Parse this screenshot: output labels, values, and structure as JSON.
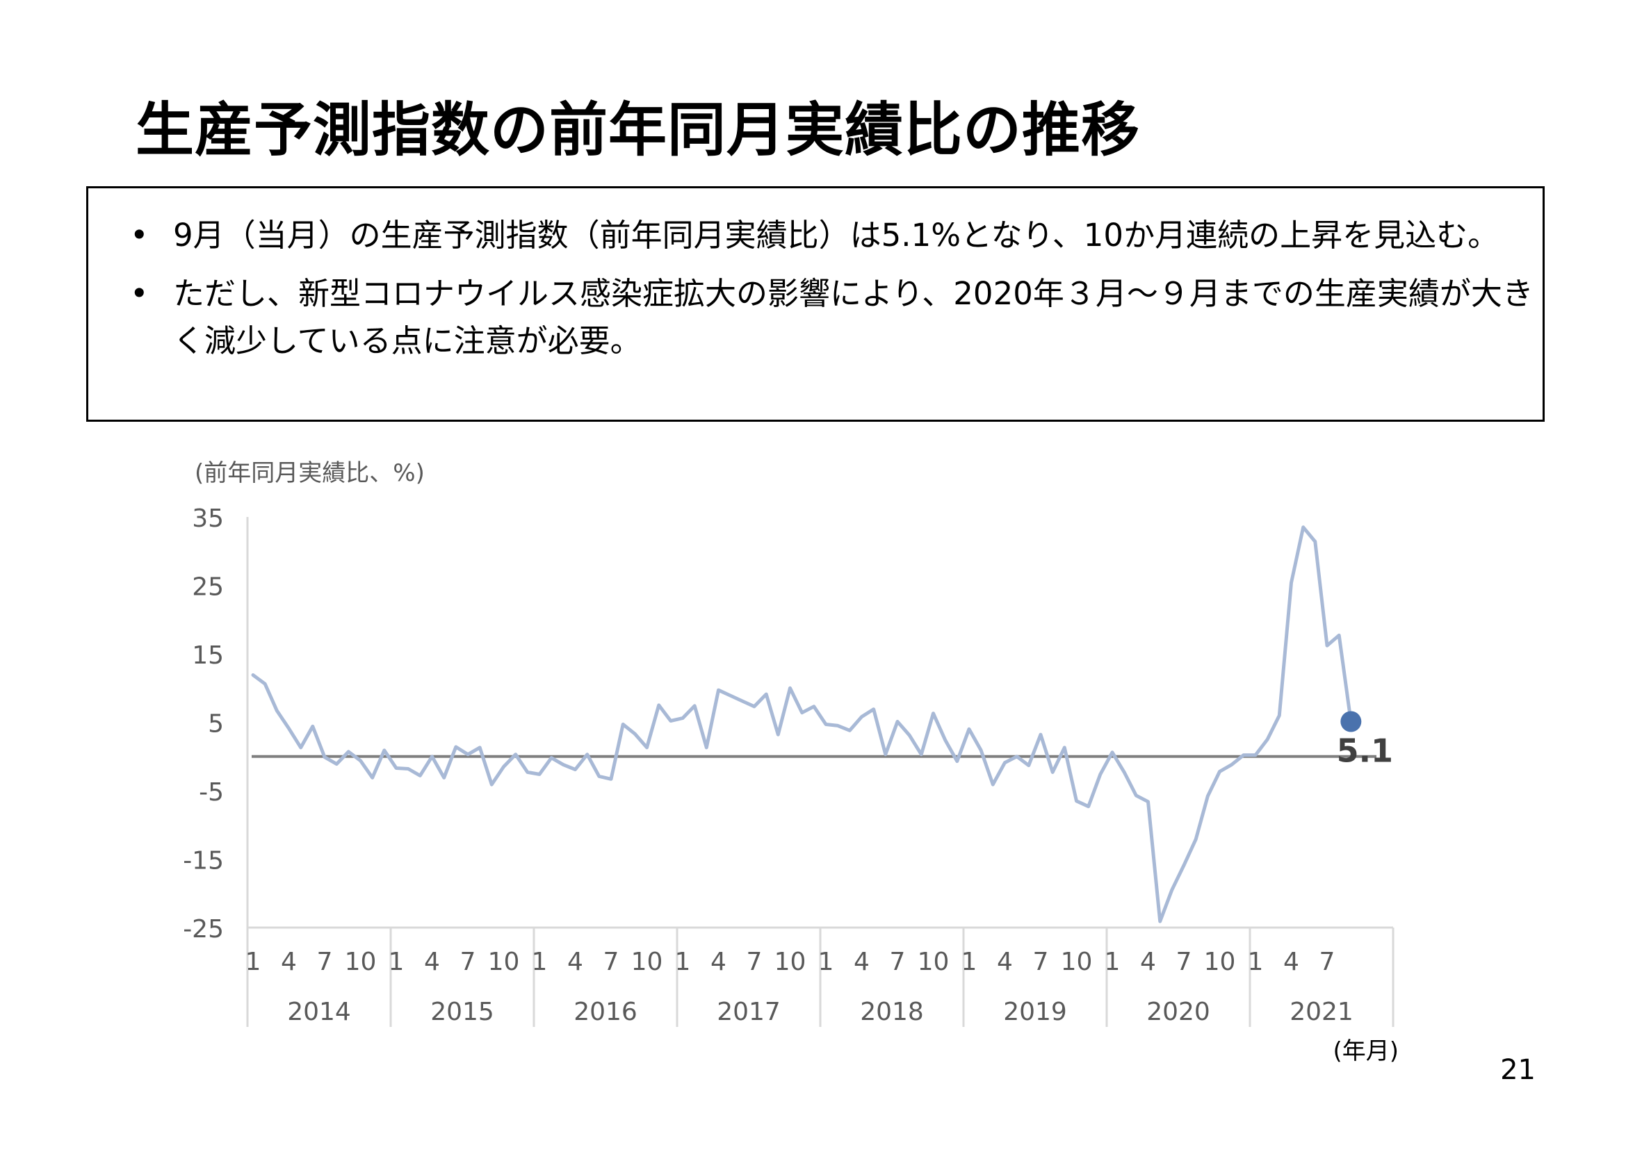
{
  "title": "生産予測指数の前年同月実績比の推移",
  "summary": {
    "bullet_mark": "•",
    "bullets": [
      "9月（当月）の生産予測指数（前年同月実績比）は5.1%となり、10か月連続の上昇を見込む。",
      "ただし、新型コロナウイルス感染症拡大の影響により、2020年３月～９月までの生産実績が大きく減少している点に注意が必要。"
    ]
  },
  "page_number": "21",
  "chart_data": {
    "type": "line",
    "title": "",
    "ylabel": "(前年同月実績比、%)",
    "xlabel": "(年月)",
    "ylim": [
      -25,
      35
    ],
    "yticks": [
      35,
      25,
      15,
      5,
      -5,
      -15,
      -25
    ],
    "month_tick_labels": [
      "1",
      "4",
      "7",
      "10"
    ],
    "years": [
      "2014",
      "2015",
      "2016",
      "2017",
      "2018",
      "2019",
      "2020",
      "2021"
    ],
    "reference_line": 0,
    "grid": false,
    "legend": "none",
    "colors": {
      "line": "#a8b9d6",
      "last_point": "#4a72ad",
      "zero_line": "#7f7f7f",
      "axis": "#d9d9d9",
      "tick_text": "#595959"
    },
    "series": [
      {
        "values": [
          11.9,
          10.6,
          6.7,
          4.1,
          1.3,
          4.4,
          -0.1,
          -1.1,
          0.7,
          -0.6,
          -3.1,
          0.9,
          -1.7,
          -1.8,
          -2.8,
          0.0,
          -3.1,
          1.4,
          0.3,
          1.3,
          -4.1,
          -1.5,
          0.3,
          -2.3,
          -2.6,
          -0.2,
          -1.2,
          -1.9,
          0.3,
          -2.9,
          -3.3,
          4.7,
          3.3,
          1.3,
          7.5,
          5.2,
          5.6,
          7.4,
          1.3,
          9.7,
          8.9,
          8.1,
          7.3,
          9.1,
          3.2,
          10.0,
          6.4,
          7.3,
          4.7,
          4.5,
          3.8,
          5.8,
          6.9,
          0.3,
          5.1,
          3.1,
          0.3,
          6.3,
          2.4,
          -0.7,
          4.0,
          0.9,
          -4.1,
          -0.9,
          0.0,
          -1.3,
          3.2,
          -2.3,
          1.3,
          -6.5,
          -7.3,
          -2.6,
          0.6,
          -2.3,
          -5.7,
          -6.6,
          -24.1,
          -19.5,
          -15.9,
          -12.1,
          -5.8,
          -2.2,
          -1.2,
          0.2,
          0.2,
          2.5,
          6.0,
          25.4,
          33.5,
          31.4,
          16.2,
          17.7,
          5.1
        ]
      }
    ],
    "last_point": {
      "value": 5.1,
      "label": "5.1"
    }
  }
}
